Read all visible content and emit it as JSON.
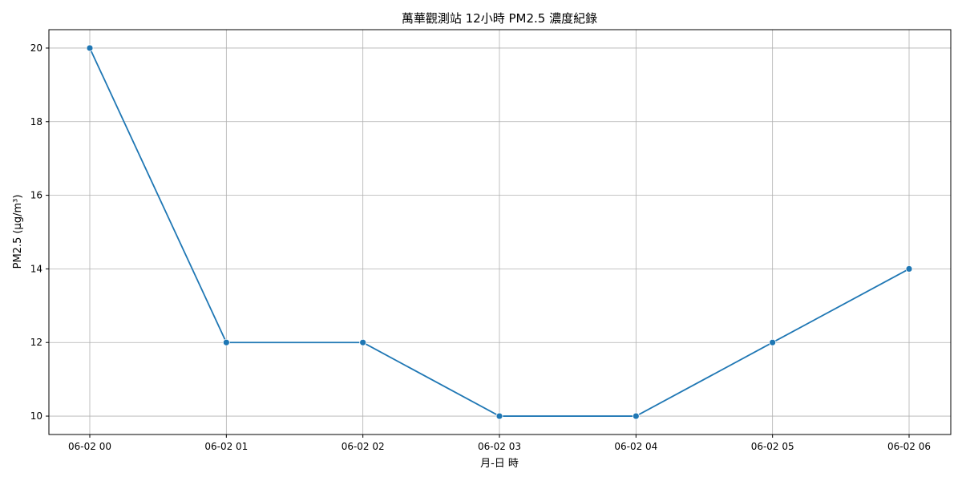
{
  "chart_data": {
    "type": "line",
    "title": "萬華觀測站 12小時 PM2.5 濃度紀錄",
    "xlabel": "月-日 時",
    "ylabel": "PM2.5 (µg/m³)",
    "categories": [
      "06-02 00",
      "06-02 01",
      "06-02 02",
      "06-02 03",
      "06-02 04",
      "06-02 05",
      "06-02 06"
    ],
    "series": [
      {
        "values": [
          20,
          12,
          12,
          10,
          10,
          12,
          14
        ],
        "color": "#1f77b4"
      }
    ],
    "yticks": [
      10,
      12,
      14,
      16,
      18,
      20
    ],
    "ylim": [
      9.5,
      20.5
    ],
    "grid": true,
    "markers": true
  }
}
